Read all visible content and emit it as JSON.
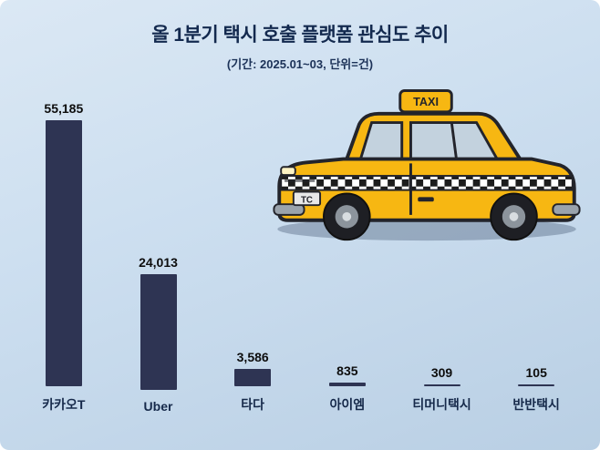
{
  "header": {
    "title": "올 1분기 택시 호출 플랫폼 관심도 추이",
    "subtitle": "(기간: 2025.01~03, 단위=건)"
  },
  "taxi": {
    "sign_label": "TAXI",
    "plate_label": "TC"
  },
  "colors": {
    "bar": "#2e3453",
    "title_text": "#13294e",
    "background_top": "#dbe8f4",
    "background_bottom": "#b9cfe4",
    "taxi_body": "#f7b712"
  },
  "chart_data": {
    "type": "bar",
    "title": "올 1분기 택시 호출 플랫폼 관심도 추이",
    "subtitle": "(기간: 2025.01~03, 단위=건)",
    "categories": [
      "카카오T",
      "Uber",
      "타다",
      "아이엠",
      "티머니택시",
      "반반택시"
    ],
    "values": [
      55185,
      24013,
      3586,
      835,
      309,
      105
    ],
    "value_labels": [
      "55,185",
      "24,013",
      "3,586",
      "835",
      "309",
      "105"
    ],
    "xlabel": "",
    "ylabel": "건",
    "ylim": [
      0,
      60000
    ],
    "grid": false,
    "legend": false,
    "bar_color": "#2e3453"
  }
}
